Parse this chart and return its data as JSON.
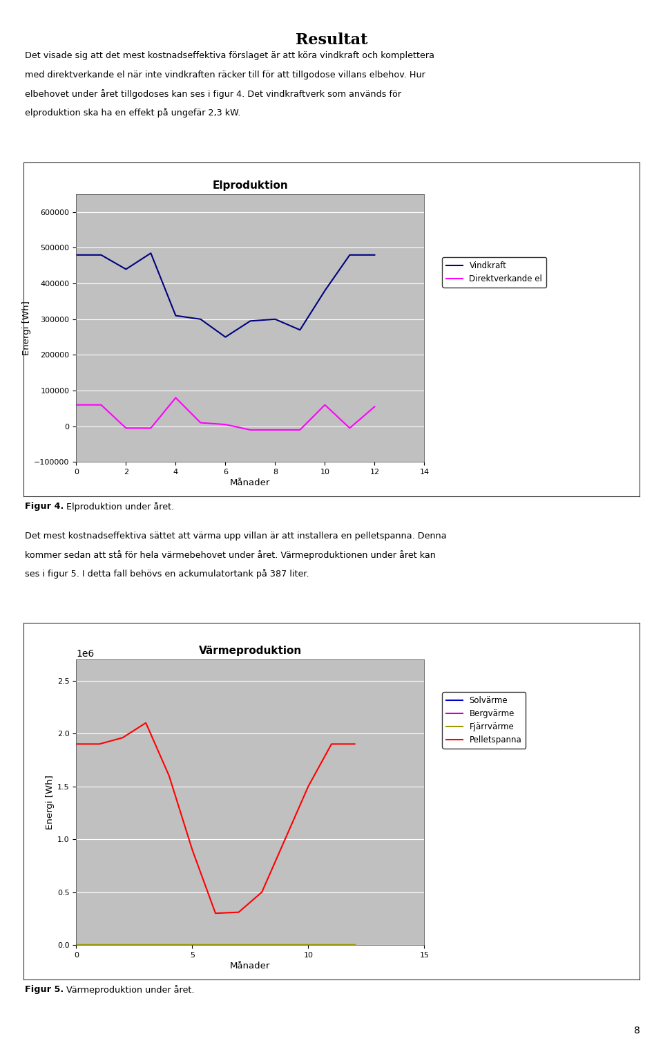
{
  "page_bg": "#ffffff",
  "title_text": "Resultat",
  "para1_lines": [
    "Det visade sig att det mest kostnadseffektiva förslaget är att köra vindkraft och komplettera",
    "med direktverkande el när inte vindkraften räcker till för att tillgodose villans elbehov. Hur",
    "elbehovet under året tillgodoses kan ses i figur 4. Det vindkraftverk som används för",
    "elproduktion ska ha en effekt på ungefär 2,3 kW."
  ],
  "para2_lines": [
    "Det mest kostnadseffektiva sättet att värma upp villan är att installera en pelletspanna. Denna",
    "kommer sedan att stå för hela värmebehovet under året. Värmeproduktionen under året kan",
    "ses i figur 5. I detta fall behövs en ackumulatortank på 387 liter."
  ],
  "fig4_caption_bold": "Figur 4.",
  "fig4_caption_rest": " Elproduktion under året.",
  "fig5_caption_bold": "Figur 5.",
  "fig5_caption_rest": " Värmeproduktion under året.",
  "page_number": "8",
  "chart1": {
    "title": "Elproduktion",
    "xlabel": "Månader",
    "ylabel": "Energi [Wh]",
    "bg_color": "#c0c0c0",
    "xlim": [
      0,
      14
    ],
    "ylim": [
      -100000,
      650000
    ],
    "yticks": [
      -100000,
      0,
      100000,
      200000,
      300000,
      400000,
      500000,
      600000
    ],
    "xticks": [
      0,
      2,
      4,
      6,
      8,
      10,
      12,
      14
    ],
    "vindkraft_x": [
      0,
      1,
      2,
      3,
      4,
      5,
      6,
      7,
      8,
      9,
      10,
      11,
      12
    ],
    "vindkraft_y": [
      480000,
      480000,
      440000,
      485000,
      310000,
      300000,
      250000,
      295000,
      300000,
      270000,
      380000,
      480000,
      480000
    ],
    "direktel_x": [
      0,
      1,
      2,
      3,
      4,
      5,
      6,
      7,
      8,
      9,
      10,
      11,
      12
    ],
    "direktel_y": [
      60000,
      60000,
      -5000,
      -5000,
      80000,
      10000,
      5000,
      -10000,
      -10000,
      -10000,
      60000,
      -5000,
      55000
    ],
    "vindkraft_color": "#000080",
    "direktel_color": "#ff00ff",
    "legend_labels": [
      "Vindkraft",
      "Direktverkande el"
    ]
  },
  "chart2": {
    "title": "Värmeproduktion",
    "xlabel": "Månader",
    "ylabel": "Energi [Wh]",
    "bg_color": "#c0c0c0",
    "xlim": [
      0,
      15
    ],
    "ylim": [
      0,
      2700000
    ],
    "yticks": [
      0,
      500000,
      1000000,
      1500000,
      2000000,
      2500000
    ],
    "xticks": [
      0,
      5,
      10,
      15
    ],
    "solvärme_x": [
      0,
      1,
      2,
      3,
      4,
      5,
      6,
      7,
      8,
      9,
      10,
      11,
      12
    ],
    "solvärme_y": [
      0,
      0,
      0,
      0,
      0,
      0,
      0,
      0,
      0,
      0,
      0,
      0,
      0
    ],
    "bergvärme_x": [
      0,
      1,
      2,
      3,
      4,
      5,
      6,
      7,
      8,
      9,
      10,
      11,
      12
    ],
    "bergvärme_y": [
      0,
      0,
      0,
      0,
      0,
      0,
      0,
      0,
      0,
      0,
      0,
      0,
      0
    ],
    "fjärrvärme_x": [
      0,
      1,
      2,
      3,
      4,
      5,
      6,
      7,
      8,
      9,
      10,
      11,
      12
    ],
    "fjärrvärme_y": [
      0,
      0,
      0,
      0,
      0,
      0,
      0,
      0,
      0,
      0,
      0,
      0,
      0
    ],
    "pellets_x": [
      0,
      1,
      2,
      3,
      4,
      5,
      6,
      7,
      8,
      9,
      10,
      11,
      12
    ],
    "pellets_y": [
      1900000,
      1900000,
      1960000,
      2100000,
      1600000,
      900000,
      300000,
      310000,
      500000,
      1000000,
      1500000,
      1900000,
      1900000
    ],
    "solvärme_color": "#0000cd",
    "bergvärme_color": "#cc00cc",
    "fjärrvärme_color": "#999900",
    "pellets_color": "#ff0000",
    "legend_labels": [
      "Solvärme",
      "Bergvärme",
      "Fjärrvärme",
      "Pelletspanna"
    ]
  }
}
